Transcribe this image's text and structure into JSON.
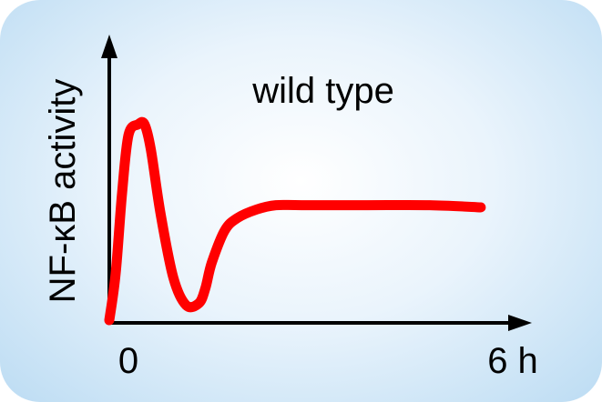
{
  "chart_data": {
    "type": "line",
    "title": "",
    "annotation": "wild type",
    "ylabel": "NF-κB activity",
    "xlabel": "",
    "x_ticks": [
      {
        "value": 0,
        "label": "0"
      },
      {
        "value": 6,
        "label": "6 h"
      }
    ],
    "xlim": [
      0,
      6
    ],
    "ylim": [
      0,
      1
    ],
    "grid": false,
    "legend": "none",
    "series": [
      {
        "color": "#ff0000",
        "x": [
          0,
          0.1,
          0.2,
          0.3,
          0.45,
          0.55,
          0.65,
          0.8,
          1.0,
          1.2,
          1.4,
          1.5,
          1.6,
          1.8,
          2.0,
          2.3,
          2.6,
          3.0,
          4.0,
          5.0,
          5.8
        ],
        "y": [
          0.0,
          0.22,
          0.6,
          0.87,
          0.92,
          0.92,
          0.8,
          0.5,
          0.2,
          0.07,
          0.08,
          0.15,
          0.27,
          0.42,
          0.48,
          0.52,
          0.54,
          0.54,
          0.54,
          0.54,
          0.53
        ]
      }
    ]
  },
  "colors": {
    "curve": "#ff0000",
    "axes": "#000000",
    "panel_edge": "#bcdcf3",
    "panel_center": "#ffffff"
  }
}
